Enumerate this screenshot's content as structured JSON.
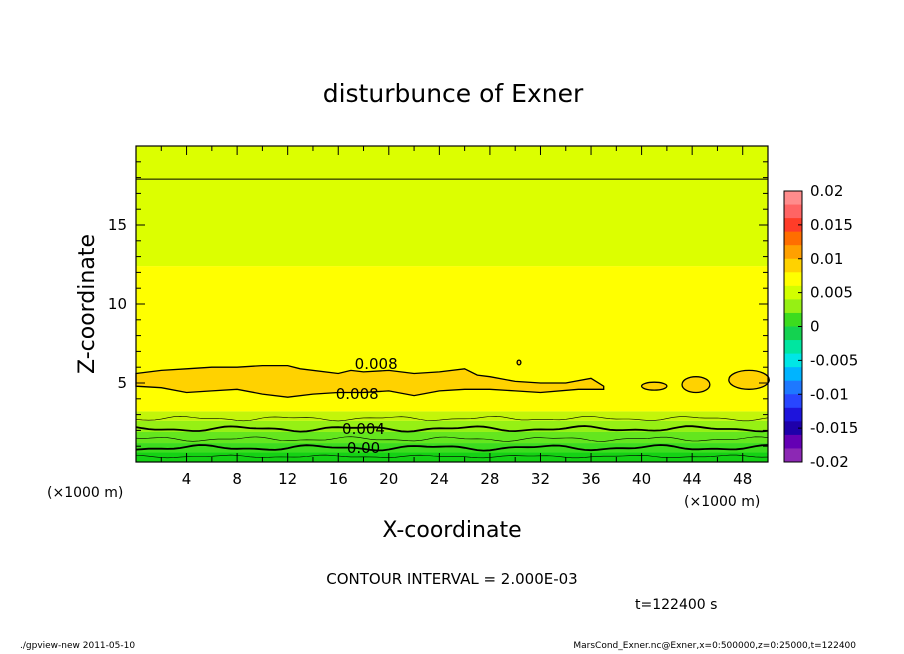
{
  "chart_data": {
    "type": "contour",
    "title": "disturbunce of Exner",
    "xlabel": "X-coordinate",
    "ylabel": "Z-coordinate",
    "x_unit": "(×1000 m)",
    "y_unit": "(×1000 m)",
    "xlim": [
      0,
      50
    ],
    "ylim": [
      0,
      20
    ],
    "x_ticks": [
      4,
      8,
      12,
      16,
      20,
      24,
      28,
      32,
      36,
      40,
      44,
      48
    ],
    "y_ticks": [
      5,
      10,
      15
    ],
    "bands": [
      {
        "z_from": 0.0,
        "z_to": 0.6,
        "color": "#14d214"
      },
      {
        "z_from": 0.6,
        "z_to": 1.2,
        "color": "#3cdc1e"
      },
      {
        "z_from": 1.2,
        "z_to": 1.9,
        "color": "#64e61e"
      },
      {
        "z_from": 1.9,
        "z_to": 2.6,
        "color": "#96f014"
      },
      {
        "z_from": 2.6,
        "z_to": 3.2,
        "color": "#c3f50a"
      },
      {
        "z_from": 3.2,
        "z_to": 12.4,
        "color": "#ffff00"
      },
      {
        "z_from": 12.4,
        "z_to": 20.0,
        "color": "#dcff00"
      }
    ],
    "contour_lines": [
      {
        "z": 17.9
      },
      {
        "z": 2.1,
        "label": "0.004"
      },
      {
        "z": 0.9,
        "label": "0.00"
      }
    ],
    "blob_label_upper": "0.008",
    "blob_label_lower": "0.008",
    "colorbar": {
      "labels": [
        "0.02",
        "0.015",
        "0.01",
        "0.005",
        "0",
        "-0.005",
        "-0.01",
        "-0.015",
        "-0.02"
      ],
      "colors": [
        "#ff8c8c",
        "#ff6464",
        "#ff3c28",
        "#ff6e00",
        "#ffa000",
        "#ffd200",
        "#ffff00",
        "#d2ff00",
        "#96f014",
        "#3cdc1e",
        "#14d250",
        "#00e6a0",
        "#00e6e6",
        "#00b4ff",
        "#1e78ff",
        "#2846ff",
        "#1e14dc",
        "#1e00aa",
        "#6400b4",
        "#8c28b4"
      ]
    },
    "annotation": "CONTOUR INTERVAL = 2.000E-03",
    "time_label": "t=122400 s"
  },
  "footer": {
    "left": "./gpview-new  2011-05-10",
    "right": "MarsCond_Exner.nc@Exner,x=0:500000,z=0:25000,t=122400"
  }
}
